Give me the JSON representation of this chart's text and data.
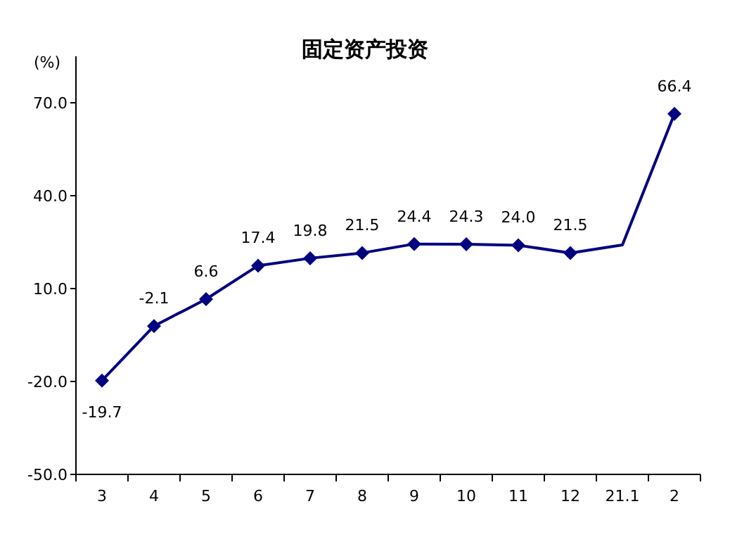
{
  "chart_data": {
    "type": "line",
    "title": "固定资产投资",
    "ylabel": "(%)",
    "categories": [
      "3",
      "4",
      "5",
      "6",
      "7",
      "8",
      "9",
      "10",
      "11",
      "12",
      "21.1",
      "2"
    ],
    "values": [
      -19.7,
      -2.1,
      6.6,
      17.4,
      19.8,
      21.5,
      24.4,
      24.3,
      24.0,
      21.5,
      24.1,
      66.4
    ],
    "value_labels": [
      "-19.7",
      "-2.1",
      "6.6",
      "17.4",
      "19.8",
      "21.5",
      "24.4",
      "24.3",
      "24.0",
      "21.5",
      null,
      "66.4"
    ],
    "color": "#000080",
    "marker": "diamond",
    "ylim": [
      -50,
      85
    ],
    "yticks": [
      {
        "value": -50,
        "label": "-50.0"
      },
      {
        "value": -20,
        "label": "-20.0"
      },
      {
        "value": 10,
        "label": "10.0"
      },
      {
        "value": 40,
        "label": "40.0"
      },
      {
        "value": 70,
        "label": "70.0"
      }
    ]
  }
}
